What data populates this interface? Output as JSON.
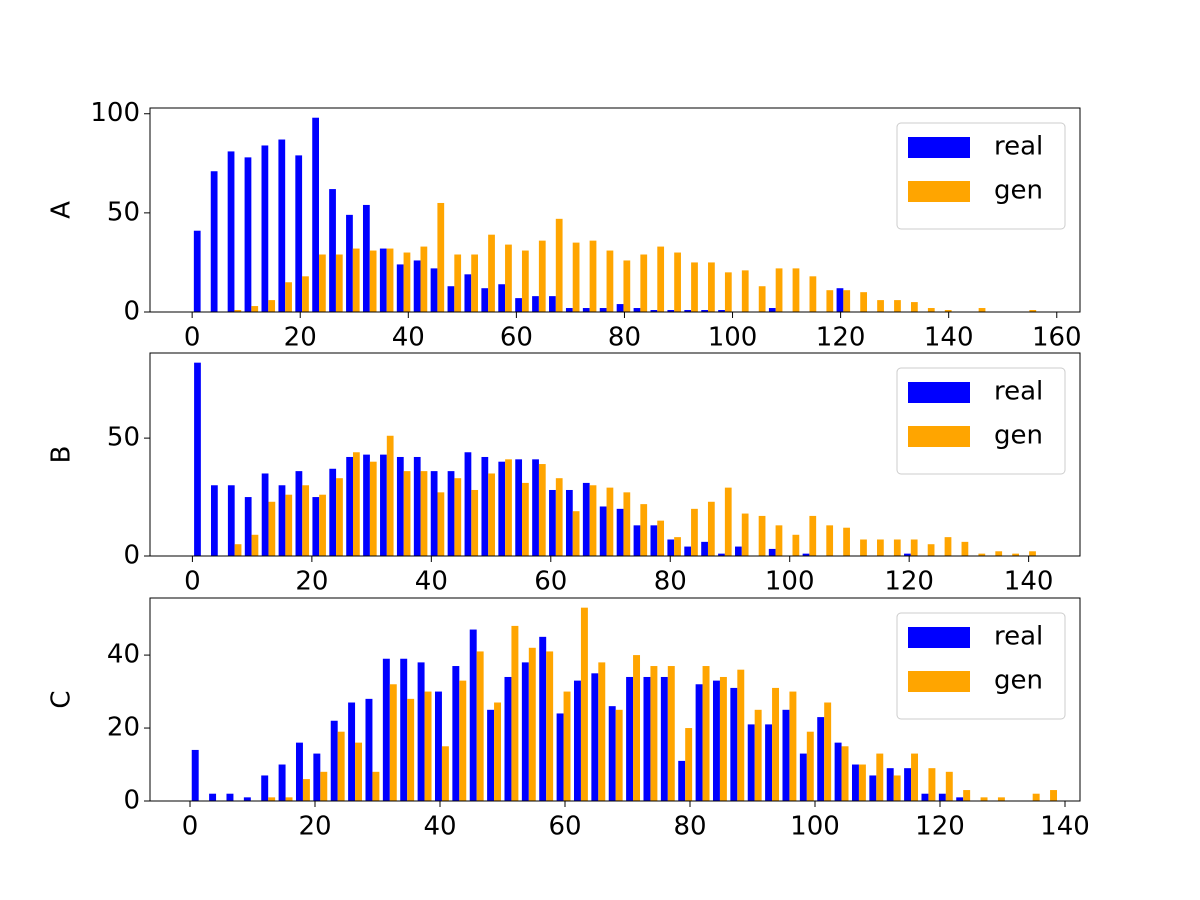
{
  "chart_data": [
    {
      "type": "histogram",
      "ylabel": "A",
      "bins": [
        0,
        3.13,
        6.26,
        9.39,
        12.52,
        15.65,
        18.78,
        21.91,
        25.04,
        28.17,
        31.3,
        34.43,
        37.56,
        40.69,
        43.82,
        46.95,
        50.08,
        53.21,
        56.34,
        59.47,
        62.6,
        65.73,
        68.86,
        71.99,
        75.12,
        78.25,
        81.38,
        84.51,
        87.64,
        90.77,
        93.9,
        97.03,
        100.16,
        103.29,
        106.42,
        109.55,
        112.68,
        115.81,
        118.94,
        122.07,
        125.2,
        128.33,
        131.46,
        134.59,
        137.72,
        140.85,
        143.98,
        147.11,
        150.24,
        153.37,
        156.5
      ],
      "series": [
        {
          "name": "real",
          "color": "#0000ff",
          "values": [
            41,
            71,
            81,
            78,
            84,
            87,
            79,
            98,
            62,
            49,
            54,
            32,
            24,
            26,
            22,
            13,
            19,
            12,
            14,
            7,
            8,
            8,
            2,
            2,
            2,
            4,
            2,
            1,
            1,
            1,
            1,
            1,
            0,
            0,
            2,
            0,
            0,
            0,
            12,
            0,
            0,
            0,
            0,
            0,
            0,
            0,
            0,
            0,
            0,
            0
          ]
        },
        {
          "name": "gen",
          "color": "#ffa500",
          "values": [
            0,
            0,
            1,
            3,
            6,
            15,
            18,
            29,
            29,
            32,
            31,
            32,
            30,
            33,
            55,
            29,
            29,
            39,
            34,
            31,
            36,
            47,
            35,
            36,
            31,
            26,
            29,
            33,
            30,
            25,
            25,
            20,
            21,
            13,
            22,
            22,
            18,
            11,
            11,
            10,
            6,
            6,
            5,
            2,
            1,
            0,
            2,
            0,
            0,
            1
          ]
        }
      ],
      "xlim": [
        -7.8,
        164.3
      ],
      "ylim": [
        0,
        102.9
      ],
      "xticks": [
        0,
        20,
        40,
        60,
        80,
        100,
        120,
        140,
        160
      ],
      "yticks": [
        0,
        50,
        100
      ],
      "legend": "upper right"
    },
    {
      "type": "histogram",
      "ylabel": "B",
      "bins": [
        0,
        2.83,
        5.66,
        8.49,
        11.32,
        14.15,
        16.98,
        19.81,
        22.64,
        25.47,
        28.3,
        31.13,
        33.96,
        36.79,
        39.62,
        42.45,
        45.28,
        48.11,
        50.94,
        53.77,
        56.6,
        59.43,
        62.26,
        65.09,
        67.92,
        70.75,
        73.58,
        76.41,
        79.24,
        82.07,
        84.9,
        87.73,
        90.56,
        93.39,
        96.22,
        99.05,
        101.88,
        104.71,
        107.54,
        110.37,
        113.2,
        116.03,
        118.86,
        121.69,
        124.52,
        127.35,
        130.18,
        133.01,
        135.84,
        138.67,
        141.5
      ],
      "series": [
        {
          "name": "real",
          "color": "#0000ff",
          "values": [
            82,
            30,
            30,
            25,
            35,
            30,
            36,
            25,
            37,
            42,
            43,
            43,
            42,
            42,
            36,
            36,
            44,
            42,
            40,
            41,
            41,
            28,
            28,
            31,
            21,
            20,
            13,
            13,
            7,
            4,
            6,
            1,
            4,
            0,
            3,
            0,
            1,
            0,
            0,
            0,
            0,
            0,
            1,
            0,
            0,
            0,
            0,
            0,
            0,
            0
          ]
        },
        {
          "name": "gen",
          "color": "#ffa500",
          "values": [
            0,
            0,
            5,
            9,
            23,
            26,
            30,
            26,
            33,
            44,
            40,
            51,
            36,
            36,
            27,
            33,
            28,
            35,
            41,
            31,
            39,
            33,
            19,
            30,
            29,
            27,
            22,
            15,
            8,
            20,
            23,
            29,
            18,
            17,
            13,
            9,
            17,
            13,
            12,
            7,
            7,
            7,
            7,
            5,
            8,
            6,
            1,
            2,
            1,
            2
          ]
        }
      ],
      "xlim": [
        -7.1,
        148.6
      ],
      "ylim": [
        0,
        86.1
      ],
      "xticks": [
        0,
        20,
        40,
        60,
        80,
        100,
        120,
        140
      ],
      "yticks": [
        0,
        50
      ],
      "legend": "upper right"
    },
    {
      "type": "histogram",
      "ylabel": "C",
      "bins": [
        0,
        2.78,
        5.56,
        8.34,
        11.12,
        13.9,
        16.68,
        19.46,
        22.24,
        25.02,
        27.8,
        30.58,
        33.36,
        36.14,
        38.92,
        41.7,
        44.48,
        47.26,
        50.04,
        52.82,
        55.6,
        58.38,
        61.16,
        63.94,
        66.72,
        69.5,
        72.28,
        75.06,
        77.84,
        80.62,
        83.4,
        86.18,
        88.96,
        91.74,
        94.52,
        97.3,
        100.08,
        102.86,
        105.64,
        108.42,
        111.2,
        113.98,
        116.76,
        119.54,
        122.32,
        125.1,
        127.88,
        130.66,
        133.44,
        136.22,
        139
      ],
      "series": [
        {
          "name": "real",
          "color": "#0000ff",
          "values": [
            14,
            2,
            2,
            1,
            7,
            10,
            16,
            13,
            22,
            27,
            28,
            39,
            39,
            38,
            30,
            37,
            47,
            25,
            34,
            38,
            45,
            24,
            33,
            35,
            26,
            34,
            34,
            34,
            11,
            32,
            33,
            31,
            21,
            21,
            25,
            13,
            23,
            16,
            10,
            7,
            9,
            9,
            2,
            2,
            1,
            0,
            0,
            0,
            0,
            0
          ]
        },
        {
          "name": "gen",
          "color": "#ffa500",
          "values": [
            0,
            0,
            0,
            0,
            1,
            1,
            6,
            8,
            19,
            16,
            8,
            32,
            28,
            30,
            15,
            33,
            41,
            27,
            48,
            42,
            41,
            30,
            53,
            38,
            25,
            40,
            37,
            37,
            20,
            37,
            34,
            36,
            25,
            31,
            30,
            19,
            27,
            15,
            10,
            13,
            7,
            13,
            9,
            8,
            3,
            1,
            1,
            0,
            2,
            3
          ]
        }
      ],
      "xlim": [
        -6.4,
        142.4
      ],
      "ylim": [
        0,
        55.65
      ],
      "xticks": [
        0,
        20,
        40,
        60,
        80,
        100,
        120,
        140
      ],
      "yticks": [
        0,
        20,
        40
      ],
      "legend": "upper right"
    }
  ]
}
